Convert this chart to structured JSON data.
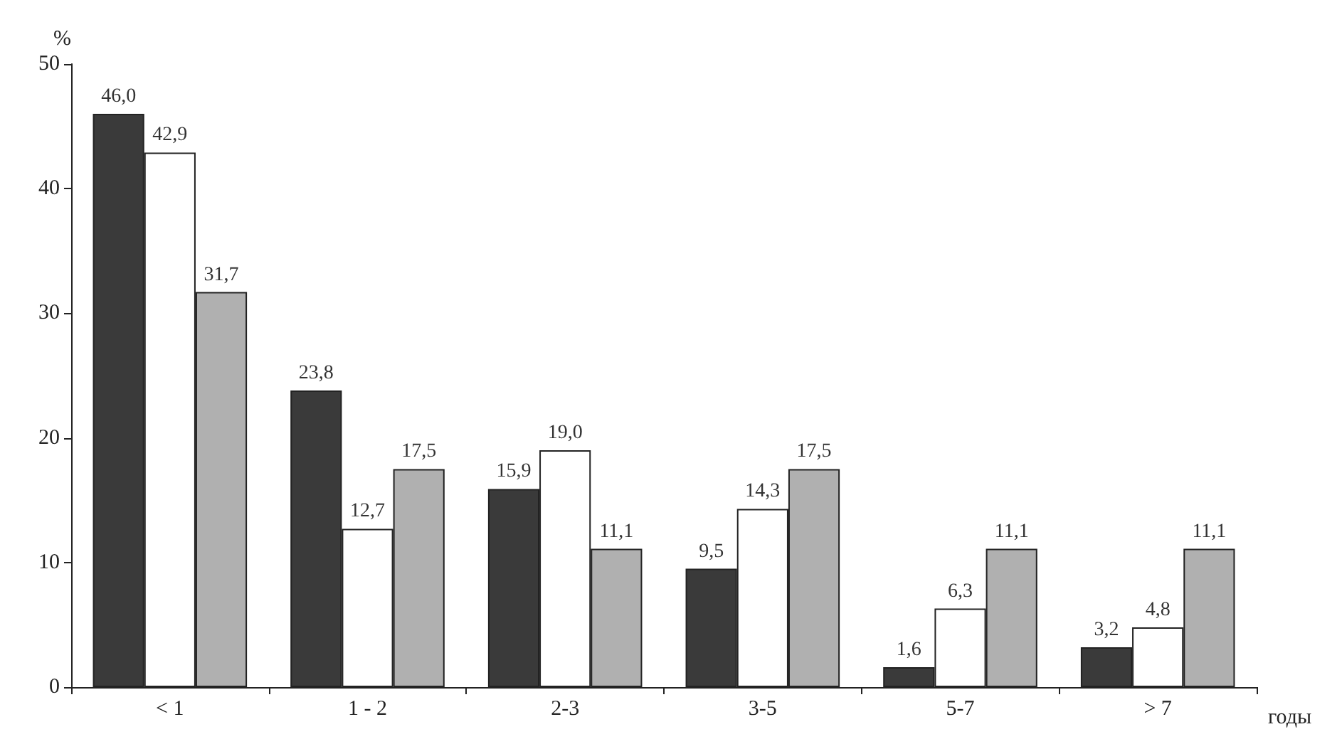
{
  "chart_data": {
    "type": "bar",
    "ylabel": "%",
    "xlabel": "годы",
    "categories": [
      "< 1",
      "1 - 2",
      "2-3",
      "3-5",
      "5-7",
      "> 7"
    ],
    "series": [
      {
        "color": "#3a3a3a",
        "values": [
          46.0,
          23.8,
          15.9,
          9.5,
          1.6,
          3.2
        ],
        "value_labels": [
          "46,0",
          "23,8",
          "15,9",
          "9,5",
          "1,6",
          "3,2"
        ]
      },
      {
        "color": "#ffffff",
        "values": [
          42.9,
          12.7,
          19.0,
          14.3,
          6.3,
          4.8
        ],
        "value_labels": [
          "42,9",
          "12,7",
          "19,0",
          "14,3",
          "6,3",
          "4,8"
        ]
      },
      {
        "color": "#b0b0b0",
        "values": [
          31.7,
          17.5,
          11.1,
          17.5,
          11.1,
          11.1
        ],
        "value_labels": [
          "31,7",
          "17,5",
          "11,1",
          "17,5",
          "11,1",
          "11,1"
        ]
      }
    ],
    "ylim": [
      0,
      50
    ],
    "yticks": [
      0,
      10,
      20,
      30,
      40,
      50
    ],
    "grid": false
  }
}
